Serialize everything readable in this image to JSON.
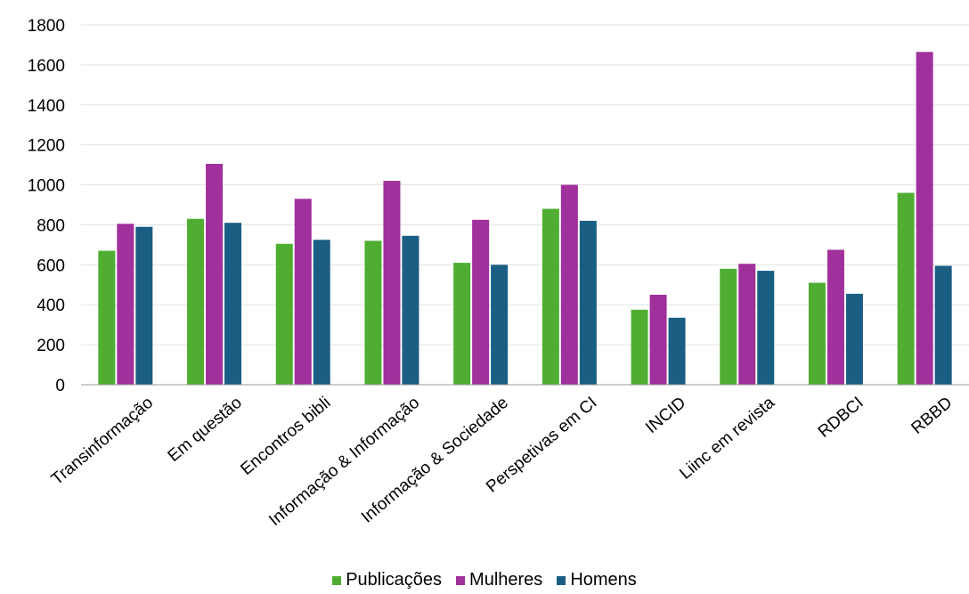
{
  "chart_data": {
    "type": "bar",
    "categories": [
      "Transinformação",
      "Em questão",
      "Encontros bibli",
      "Informação & Informação",
      "Informação & Sociedade",
      "Perspetivas em CI",
      "INCID",
      "Liinc em revista",
      "RDBCI",
      "RBBD"
    ],
    "series": [
      {
        "name": "Publicações",
        "color": "#4fae32",
        "values": [
          670,
          830,
          705,
          720,
          610,
          880,
          375,
          580,
          510,
          960
        ]
      },
      {
        "name": "Mulheres",
        "color": "#a0309b",
        "values": [
          805,
          1105,
          930,
          1020,
          825,
          1000,
          450,
          605,
          675,
          1665
        ]
      },
      {
        "name": "Homens",
        "color": "#1b5e84",
        "values": [
          790,
          810,
          725,
          745,
          600,
          820,
          335,
          570,
          455,
          595
        ]
      }
    ],
    "ylim": [
      0,
      1800
    ],
    "yticks": [
      0,
      200,
      400,
      600,
      800,
      1000,
      1200,
      1400,
      1600,
      1800
    ],
    "grid": true,
    "legend_position": "bottom"
  }
}
